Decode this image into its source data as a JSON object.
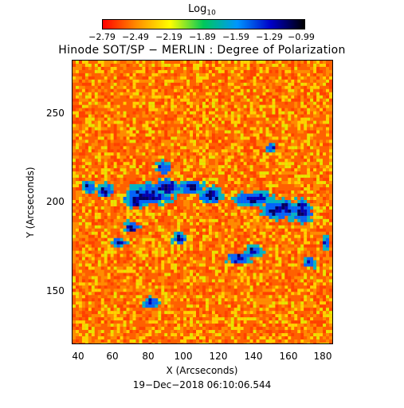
{
  "colorbar": {
    "title_base": "Log",
    "title_sub": "10",
    "tick_labels": [
      "−2.79",
      "−2.49",
      "−2.19",
      "−1.89",
      "−1.59",
      "−1.29",
      "−0.99"
    ],
    "colors": [
      "#ff0000",
      "#ff8c00",
      "#ffff00",
      "#00c85a",
      "#0096ff",
      "#0000c8",
      "#000000"
    ]
  },
  "title": "Hinode SOT/SP − MERLIN : Degree of Polarization",
  "axes": {
    "x_label": "X (Arcseconds)",
    "y_label": "Y (Arcseconds)",
    "x_ticks": [
      "40",
      "60",
      "80",
      "100",
      "120",
      "140",
      "160",
      "180"
    ],
    "y_ticks": [
      "250",
      "200",
      "150"
    ]
  },
  "timestamp": "19−Dec−2018 06:10:06.544",
  "image": {
    "x_range": [
      35,
      186
    ],
    "y_range": [
      115,
      275
    ],
    "background_colors": [
      "#ff6000",
      "#ff8c00",
      "#ff4000",
      "#ffd200",
      "#e6e600"
    ],
    "feature_colors": [
      "#00b4c8",
      "#0064ff",
      "#0000b4",
      "#000064"
    ]
  }
}
